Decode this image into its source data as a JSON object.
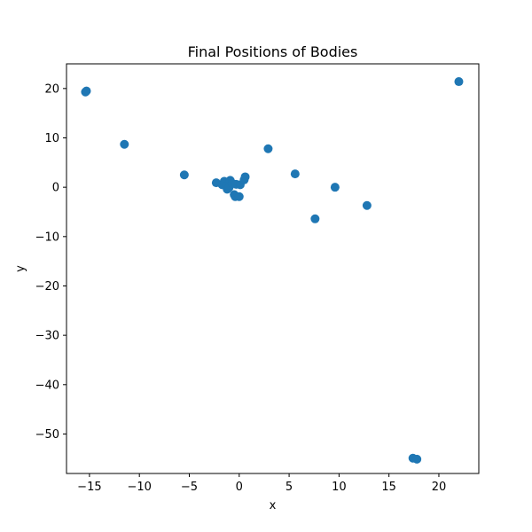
{
  "chart_data": {
    "type": "scatter",
    "title": "Final Positions of Bodies",
    "xlabel": "x",
    "ylabel": "y",
    "xlim": [
      -17.3,
      24.0
    ],
    "ylim": [
      -58.0,
      25.0
    ],
    "xticks": [
      -15,
      -10,
      -5,
      0,
      5,
      10,
      15,
      20
    ],
    "yticks": [
      -50,
      -40,
      -30,
      -20,
      -10,
      0,
      10,
      20
    ],
    "xtick_labels": [
      "−15",
      "−10",
      "−5",
      "0",
      "5",
      "10",
      "15",
      "20"
    ],
    "ytick_labels": [
      "−50",
      "−40",
      "−30",
      "−20",
      "−10",
      "0",
      "10",
      "20"
    ],
    "grid": false,
    "marker_color": "#1f77b4",
    "x": [
      -15.4,
      -15.3,
      -11.5,
      -5.5,
      2.9,
      5.6,
      9.6,
      7.6,
      12.8,
      22.0,
      17.4,
      17.8,
      -2.3,
      -1.7,
      -1.5,
      -1.3,
      -1.2,
      -1.0,
      -0.9,
      -0.7,
      -0.5,
      -0.4,
      -0.3,
      0.0,
      0.1,
      0.5,
      0.6
    ],
    "y": [
      19.3,
      19.5,
      8.7,
      2.5,
      7.8,
      2.7,
      0.0,
      -6.4,
      -3.7,
      21.4,
      -54.9,
      -55.1,
      0.9,
      0.5,
      1.2,
      0.2,
      -0.4,
      0.0,
      1.4,
      0.8,
      -1.5,
      -1.9,
      0.6,
      -1.9,
      0.5,
      1.5,
      2.1
    ]
  }
}
